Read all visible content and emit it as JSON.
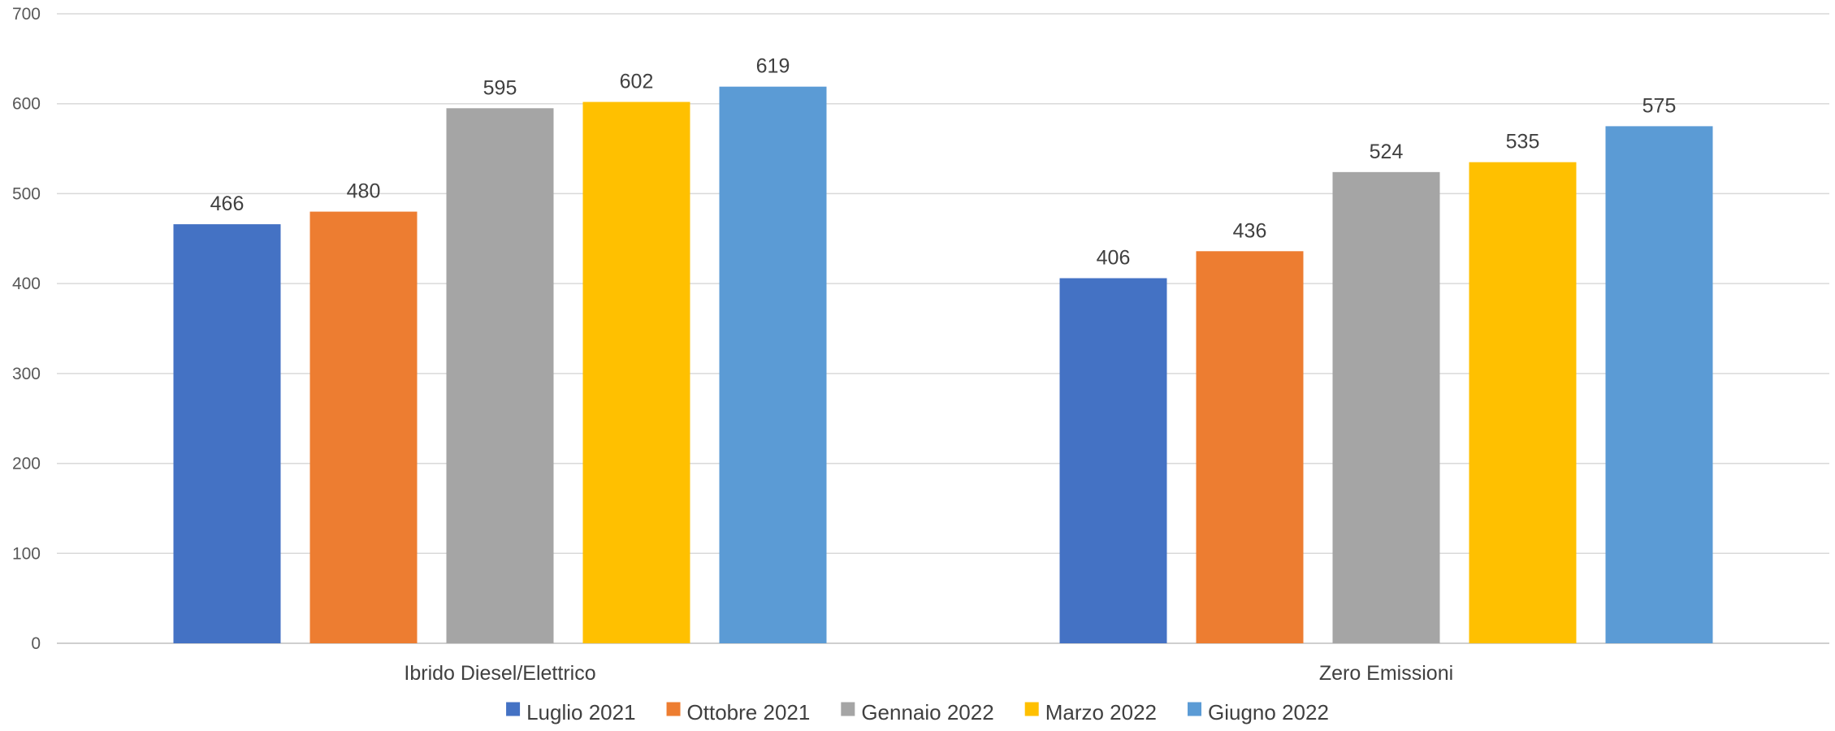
{
  "chart_data": {
    "type": "bar",
    "categories": [
      "Ibrido Diesel/Elettrico",
      "Zero Emissioni"
    ],
    "series": [
      {
        "name": "Luglio 2021",
        "values": [
          466,
          406
        ],
        "color": "#4472C4"
      },
      {
        "name": "Ottobre 2021",
        "values": [
          480,
          436
        ],
        "color": "#ED7D31"
      },
      {
        "name": "Gennaio 2022",
        "values": [
          595,
          524
        ],
        "color": "#A5A5A5"
      },
      {
        "name": "Marzo 2022",
        "values": [
          602,
          535
        ],
        "color": "#FFC000"
      },
      {
        "name": "Giugno 2022",
        "values": [
          619,
          575
        ],
        "color": "#5B9BD5"
      }
    ],
    "ylim": [
      0,
      700
    ],
    "yticks": [
      "0",
      "100",
      "200",
      "300",
      "400",
      "500",
      "600",
      "700"
    ],
    "grid": true,
    "legend_position": "bottom",
    "data_labels": true
  }
}
